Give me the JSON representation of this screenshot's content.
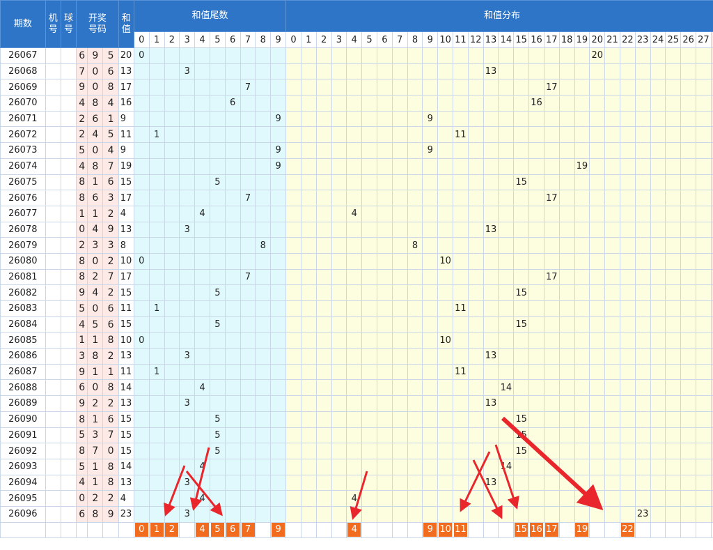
{
  "header": {
    "period": "期数",
    "machine": "机号",
    "ball": "球号",
    "draw_numbers": "开奖号码",
    "sum": "和值",
    "tail_group": "和值尾数",
    "dist_group": "和值分布"
  },
  "tail_cols": [
    "0",
    "1",
    "2",
    "3",
    "4",
    "5",
    "6",
    "7",
    "8",
    "9"
  ],
  "dist_cols": [
    "0",
    "1",
    "2",
    "3",
    "4",
    "5",
    "6",
    "7",
    "8",
    "9",
    "10",
    "11",
    "12",
    "13",
    "14",
    "15",
    "16",
    "17",
    "18",
    "19",
    "20",
    "21",
    "22",
    "23",
    "24",
    "25",
    "26",
    "27"
  ],
  "rows": [
    {
      "period": "26067",
      "digits": [
        "6",
        "9",
        "5"
      ],
      "sum": "20"
    },
    {
      "period": "26068",
      "digits": [
        "7",
        "0",
        "6"
      ],
      "sum": "13"
    },
    {
      "period": "26069",
      "digits": [
        "9",
        "0",
        "8"
      ],
      "sum": "17"
    },
    {
      "period": "26070",
      "digits": [
        "4",
        "8",
        "4"
      ],
      "sum": "16"
    },
    {
      "period": "26071",
      "digits": [
        "2",
        "6",
        "1"
      ],
      "sum": "9"
    },
    {
      "period": "26072",
      "digits": [
        "2",
        "4",
        "5"
      ],
      "sum": "11"
    },
    {
      "period": "26073",
      "digits": [
        "5",
        "0",
        "4"
      ],
      "sum": "9"
    },
    {
      "period": "26074",
      "digits": [
        "4",
        "8",
        "7"
      ],
      "sum": "19"
    },
    {
      "period": "26075",
      "digits": [
        "8",
        "1",
        "6"
      ],
      "sum": "15"
    },
    {
      "period": "26076",
      "digits": [
        "8",
        "6",
        "3"
      ],
      "sum": "17"
    },
    {
      "period": "26077",
      "digits": [
        "1",
        "1",
        "2"
      ],
      "sum": "4"
    },
    {
      "period": "26078",
      "digits": [
        "0",
        "4",
        "9"
      ],
      "sum": "13"
    },
    {
      "period": "26079",
      "digits": [
        "2",
        "3",
        "3"
      ],
      "sum": "8"
    },
    {
      "period": "26080",
      "digits": [
        "8",
        "0",
        "2"
      ],
      "sum": "10"
    },
    {
      "period": "26081",
      "digits": [
        "8",
        "2",
        "7"
      ],
      "sum": "17"
    },
    {
      "period": "26082",
      "digits": [
        "9",
        "4",
        "2"
      ],
      "sum": "15"
    },
    {
      "period": "26083",
      "digits": [
        "5",
        "0",
        "6"
      ],
      "sum": "11"
    },
    {
      "period": "26084",
      "digits": [
        "4",
        "5",
        "6"
      ],
      "sum": "15"
    },
    {
      "period": "26085",
      "digits": [
        "1",
        "1",
        "8"
      ],
      "sum": "10"
    },
    {
      "period": "26086",
      "digits": [
        "3",
        "8",
        "2"
      ],
      "sum": "13"
    },
    {
      "period": "26087",
      "digits": [
        "9",
        "1",
        "1"
      ],
      "sum": "11"
    },
    {
      "period": "26088",
      "digits": [
        "6",
        "0",
        "8"
      ],
      "sum": "14"
    },
    {
      "period": "26089",
      "digits": [
        "9",
        "2",
        "2"
      ],
      "sum": "13"
    },
    {
      "period": "26090",
      "digits": [
        "8",
        "1",
        "6"
      ],
      "sum": "15"
    },
    {
      "period": "26091",
      "digits": [
        "5",
        "3",
        "7"
      ],
      "sum": "15"
    },
    {
      "period": "26092",
      "digits": [
        "8",
        "7",
        "0"
      ],
      "sum": "15"
    },
    {
      "period": "26093",
      "digits": [
        "5",
        "1",
        "8"
      ],
      "sum": "14"
    },
    {
      "period": "26094",
      "digits": [
        "4",
        "1",
        "8"
      ],
      "sum": "13"
    },
    {
      "period": "26095",
      "digits": [
        "0",
        "2",
        "2"
      ],
      "sum": "4"
    },
    {
      "period": "26096",
      "digits": [
        "6",
        "8",
        "9"
      ],
      "sum": "23"
    }
  ],
  "prediction": {
    "tail_marks": [
      "0",
      "1",
      "2",
      "4",
      "5",
      "6",
      "7",
      "9"
    ],
    "dist_marks": [
      "4",
      "9",
      "10",
      "11",
      "15",
      "16",
      "17",
      "19",
      "22"
    ]
  },
  "colors": {
    "header_blue": "#2e75c8",
    "tail_bg": "#dff9fd",
    "dist_bg": "#fdfde0",
    "digit_bg": "#fde9e5",
    "mark_orange": "#f26c1f",
    "arrow_red": "#e8262b"
  }
}
